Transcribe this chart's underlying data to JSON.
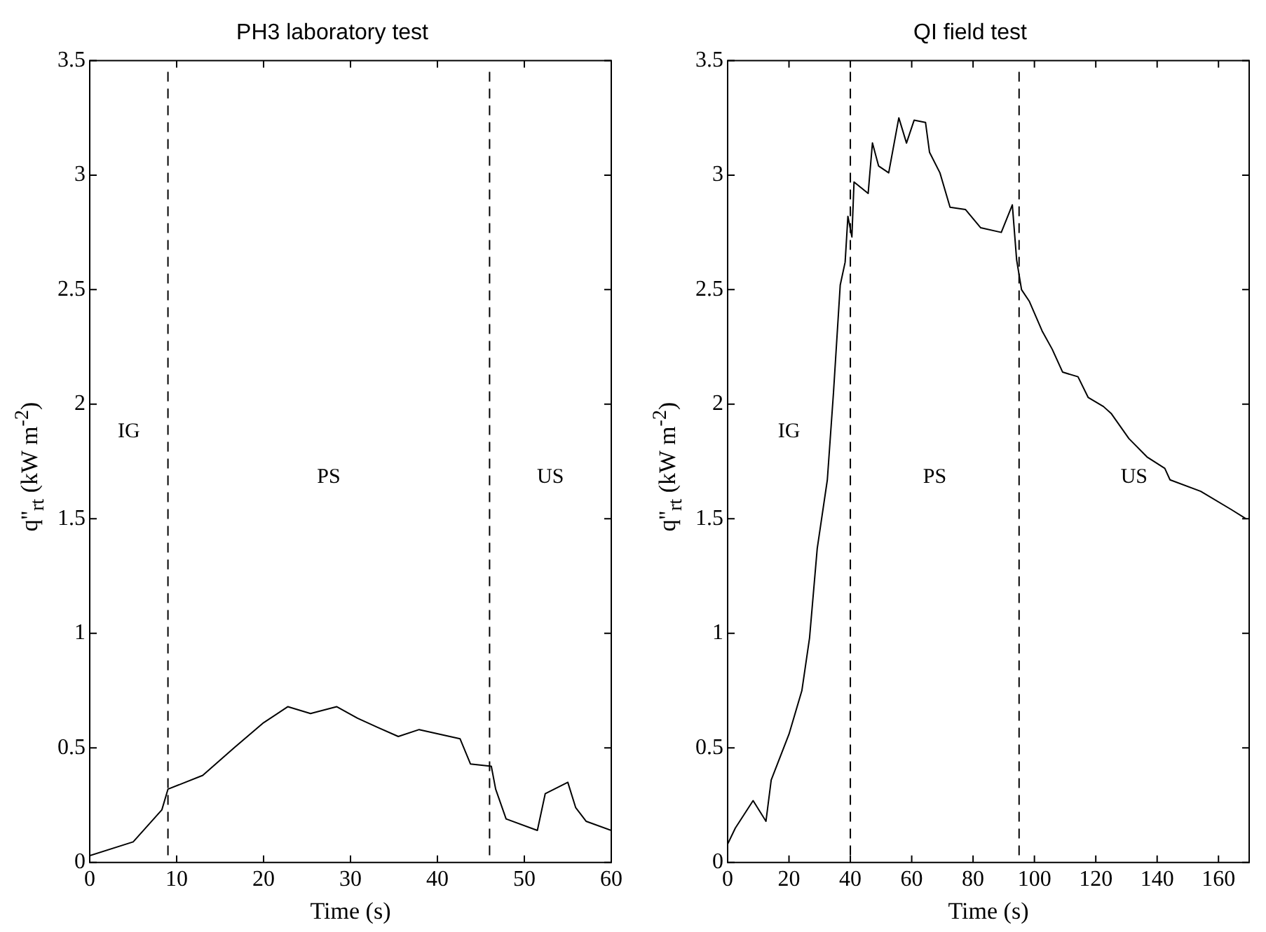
{
  "chart_data": [
    {
      "type": "line",
      "title": "PH3 laboratory test",
      "xlabel": "Time (s)",
      "ylabel": "q''$_{rt}$  (kW m$^{-2}$)",
      "xlim": [
        0,
        60
      ],
      "xticks": [
        0,
        10,
        20,
        30,
        40,
        50,
        60
      ],
      "ylim": [
        0,
        3.5
      ],
      "yticks": [
        0,
        0.5,
        1,
        1.5,
        2,
        2.5,
        3,
        3.5
      ],
      "grid": false,
      "marker": "none",
      "line_style": "solid",
      "series": [
        {
          "color": "#000000",
          "x": [
            0,
            5,
            8.3,
            9,
            13,
            16.6,
            20,
            22.8,
            25.4,
            28.4,
            30.8,
            33.1,
            35.5,
            37.9,
            42.6,
            43.8,
            46.2,
            46.7,
            47.9,
            51.5,
            52.4,
            55,
            55.9,
            57.1,
            60
          ],
          "values": [
            0.03,
            0.09,
            0.23,
            0.32,
            0.38,
            0.5,
            0.61,
            0.68,
            0.65,
            0.68,
            0.63,
            0.59,
            0.55,
            0.58,
            0.54,
            0.43,
            0.42,
            0.32,
            0.19,
            0.14,
            0.3,
            0.35,
            0.24,
            0.18,
            0.14
          ]
        }
      ],
      "ref_lines": [
        {
          "axis": "x",
          "value": 9,
          "line_style": "dashed",
          "color": "#000000"
        },
        {
          "axis": "x",
          "value": 46,
          "line_style": "dashed",
          "color": "#000000"
        }
      ],
      "annotations": [
        "IG",
        "PS",
        "US"
      ]
    },
    {
      "type": "line",
      "title": "QI field test",
      "xlabel": "Time (s)",
      "ylabel": "q''$_{rt}$  (kW m$^{-2}$)",
      "xlim": [
        0,
        170
      ],
      "xticks": [
        0,
        20,
        40,
        60,
        80,
        100,
        120,
        140,
        160
      ],
      "ylim": [
        0,
        3.5
      ],
      "yticks": [
        0,
        0.5,
        1,
        1.5,
        2,
        2.5,
        3,
        3.5
      ],
      "grid": false,
      "marker": "none",
      "line_style": "solid",
      "series": [
        {
          "color": "#000000",
          "x": [
            0,
            2.5,
            8.3,
            12.5,
            14.2,
            20,
            24.2,
            26.7,
            29.2,
            32.5,
            34.5,
            36.7,
            38.3,
            39.2,
            40.5,
            41.2,
            45.8,
            47.2,
            49.2,
            52.5,
            55.8,
            58.3,
            60.8,
            64.5,
            65.8,
            69.2,
            72.5,
            77.5,
            82.5,
            89.2,
            92.8,
            94.2,
            95.8,
            98.3,
            102.5,
            105.8,
            109.2,
            114.2,
            117.5,
            122.5,
            125,
            130.8,
            136.7,
            142.5,
            144.2,
            154.2,
            164.2,
            169
          ],
          "values": [
            0.08,
            0.15,
            0.27,
            0.18,
            0.36,
            0.56,
            0.75,
            0.98,
            1.37,
            1.67,
            2.05,
            2.52,
            2.62,
            2.82,
            2.73,
            2.97,
            2.92,
            3.14,
            3.04,
            3.01,
            3.25,
            3.14,
            3.24,
            3.23,
            3.1,
            3.01,
            2.86,
            2.85,
            2.77,
            2.75,
            2.87,
            2.63,
            2.5,
            2.45,
            2.32,
            2.24,
            2.14,
            2.12,
            2.03,
            1.99,
            1.96,
            1.85,
            1.77,
            1.72,
            1.67,
            1.62,
            1.54,
            1.5
          ]
        }
      ],
      "ref_lines": [
        {
          "axis": "x",
          "value": 40,
          "line_style": "dashed",
          "color": "#000000"
        },
        {
          "axis": "x",
          "value": 95,
          "line_style": "dashed",
          "color": "#000000"
        }
      ],
      "annotations": [
        "IG",
        "PS",
        "US"
      ]
    }
  ]
}
